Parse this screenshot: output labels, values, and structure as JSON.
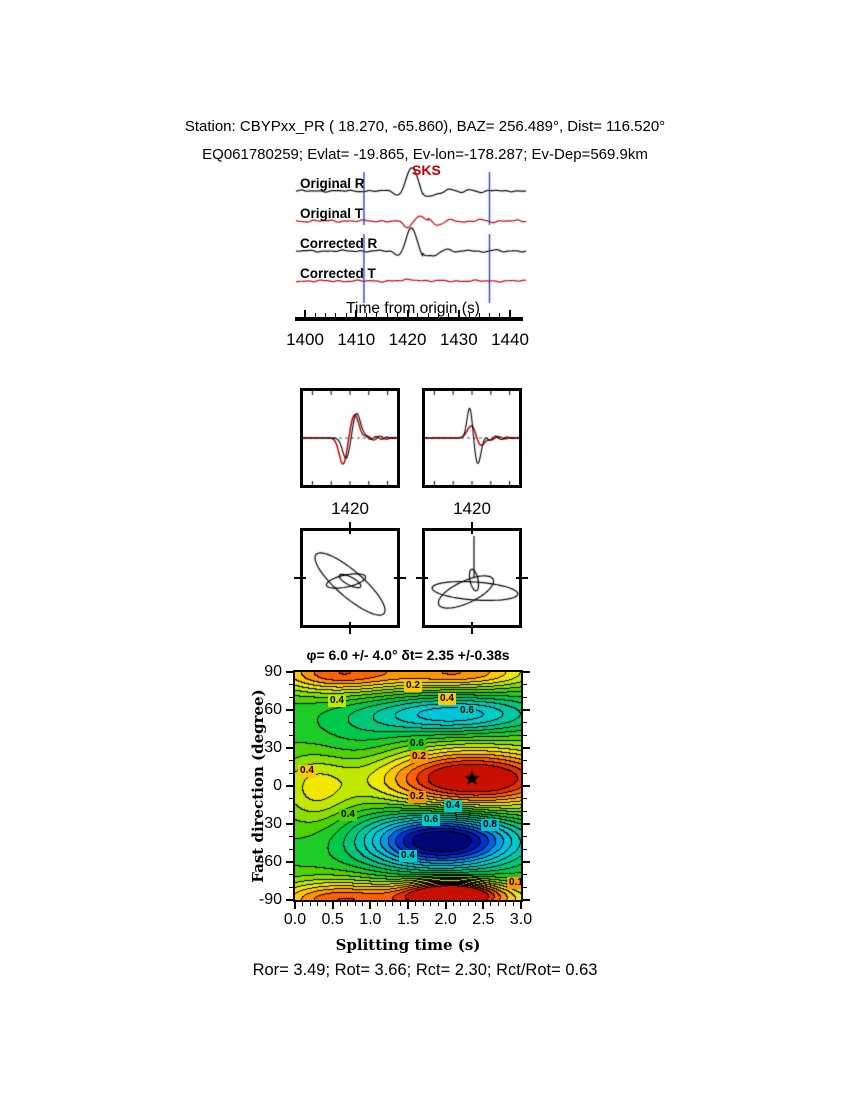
{
  "header": {
    "line1": "Station: CBYPxx_PR (  18.270,  -65.860), BAZ=  256.489°, Dist=  116.520°",
    "line2": "EQ061780259; Evlat= -19.865, Ev-lon=-178.287; Ev-Dep=569.9km"
  },
  "waveform_panel": {
    "phase_label": "SKS",
    "phase_color": "#c00000",
    "axis_label": "Time from origin (s)",
    "traces": [
      {
        "label": "Original R",
        "color": "#000000"
      },
      {
        "label": "Original T",
        "color": "#c00000"
      },
      {
        "label": "Corrected R",
        "color": "#000000"
      },
      {
        "label": "Corrected T",
        "color": "#c00000"
      }
    ],
    "x_ticks": [
      "1400",
      "1410",
      "1420",
      "1430",
      "1440"
    ],
    "x_range": [
      1400,
      1440
    ],
    "window_times": [
      1411.5,
      1436
    ],
    "window_marker_color": "#2f3fbf"
  },
  "window_panels": {
    "tick_label": "1420"
  },
  "results_line": "Ror= 3.49; Rot= 3.66; Rct= 2.30; Rct/Rot= 0.63",
  "chart_data": [
    {
      "type": "line",
      "title": "SKS seismograms original and corrected",
      "xlabel": "Time from origin (s)",
      "x_range": [
        1400,
        1440
      ],
      "x_ticks": [
        1400,
        1410,
        1420,
        1430,
        1440
      ],
      "series": [
        {
          "name": "Original R",
          "color": "#000000"
        },
        {
          "name": "Original T",
          "color": "#c00000"
        },
        {
          "name": "Corrected R",
          "color": "#000000"
        },
        {
          "name": "Corrected T",
          "color": "#c00000"
        }
      ],
      "phase_marker": "SKS",
      "window": [
        1411.5,
        1436
      ]
    },
    {
      "type": "heatmap",
      "title": "φ= 6.0 +/- 4.0° δt= 2.35 +/-0.38s",
      "xlabel": "Splitting time (s)",
      "ylabel": "Fast direction (degree)",
      "xlim": [
        0,
        3
      ],
      "ylim": [
        -90,
        90
      ],
      "x_ticks": [
        "0.0",
        "0.5",
        "1.0",
        "1.5",
        "2.0",
        "2.5",
        "3.0"
      ],
      "y_ticks": [
        "90",
        "60",
        "30",
        "0",
        "-30",
        "-60",
        "-90"
      ],
      "grid": false,
      "best_fit": {
        "phi_deg": 6.0,
        "phi_err_deg": 4.0,
        "dt_s": 2.35,
        "dt_err_s": 0.38
      },
      "star": {
        "x": 2.35,
        "y": 6
      },
      "contour_interval": 0.05,
      "palette": [
        "#c80f00",
        "#e63000",
        "#ff6000",
        "#ff9500",
        "#ffc800",
        "#f0e800",
        "#c0e800",
        "#8ade00",
        "#50d200",
        "#1ecc28",
        "#00c84b",
        "#00c878",
        "#00c8a5",
        "#00ccc8",
        "#00c3dc",
        "#009ee6",
        "#0064e6",
        "#0032d2",
        "#0014aa",
        "#000578"
      ],
      "contour_labels": [
        {
          "text": "0.2",
          "x": 118,
          "y": 14,
          "bg": "#ffc800"
        },
        {
          "text": "0.4",
          "x": 152,
          "y": 27,
          "bg": "#ffc800"
        },
        {
          "text": "0.6",
          "x": 172,
          "y": 39,
          "bg": "#00ccc8"
        },
        {
          "text": "0.4",
          "x": 42,
          "y": 29,
          "bg": "#c0e800"
        },
        {
          "text": "0.6",
          "x": 122,
          "y": 72,
          "bg": "#1ecc28"
        },
        {
          "text": "0.2",
          "x": 124,
          "y": 85,
          "bg": "#ff9500"
        },
        {
          "text": "0.4",
          "x": 12,
          "y": 99,
          "bg": "#ffc800"
        },
        {
          "text": "0.2",
          "x": 122,
          "y": 125,
          "bg": "#ff9500"
        },
        {
          "text": "0.4",
          "x": 158,
          "y": 134,
          "bg": "#00ccc8"
        },
        {
          "text": "0.6",
          "x": 136,
          "y": 148,
          "bg": "#00ccc8"
        },
        {
          "text": "0.8",
          "x": 195,
          "y": 153,
          "bg": "#00c3dc"
        },
        {
          "text": "0.4",
          "x": 53,
          "y": 143,
          "bg": "#50d200"
        },
        {
          "text": "0.4",
          "x": 113,
          "y": 184,
          "bg": "#00ccc8"
        },
        {
          "text": "0.1",
          "x": 221,
          "y": 211,
          "bg": "#ff9500"
        }
      ]
    }
  ]
}
